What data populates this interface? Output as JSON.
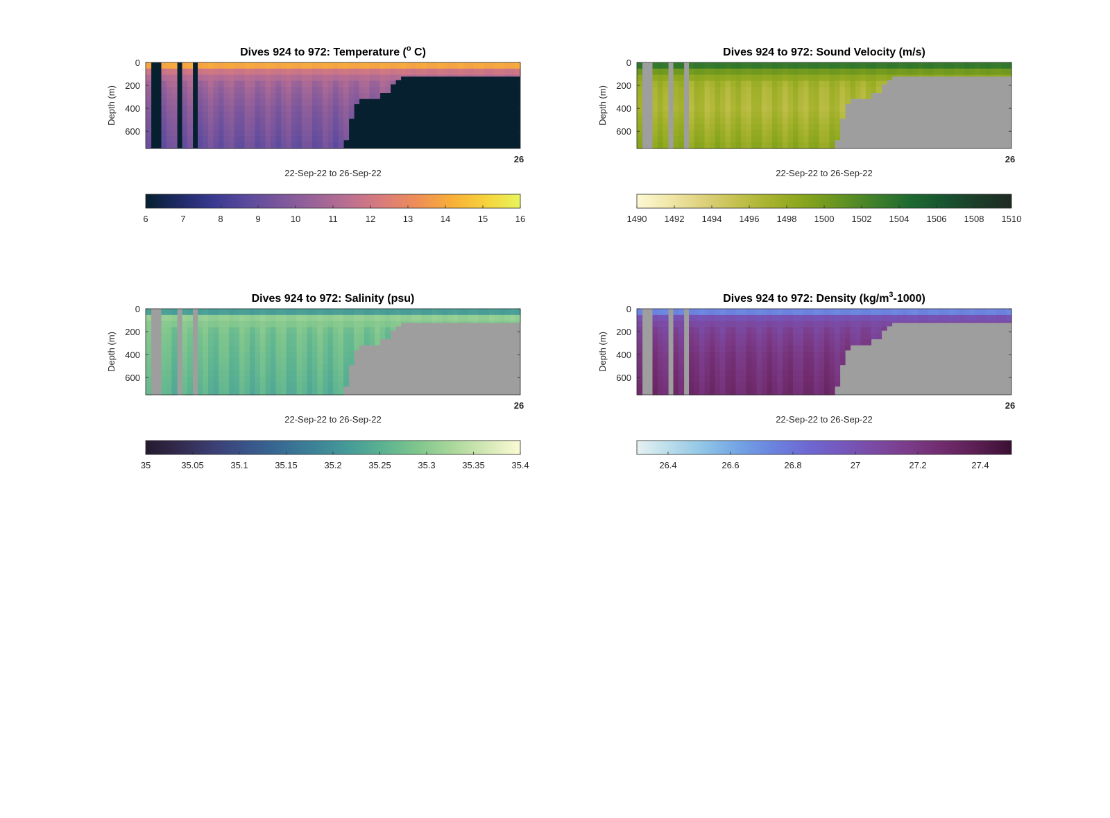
{
  "chart_data": [
    {
      "type": "heatmap",
      "variable": "temperature",
      "title": "Dives 924 to 972: Temperature (",
      "title_sup": "o",
      "title_end": " C)",
      "ylabel": "Depth (m)",
      "xlabel": "22-Sep-22 to 26-Sep-22",
      "x_tick_label": "26",
      "ylim": [
        0,
        750
      ],
      "yticks": [
        0,
        200,
        400,
        600
      ],
      "colorbar": {
        "min": 6,
        "max": 16,
        "ticks": [
          "6",
          "7",
          "8",
          "9",
          "10",
          "11",
          "12",
          "13",
          "14",
          "15",
          "16"
        ]
      },
      "fill_color": "#06202f",
      "colormap": [
        "#06202f",
        "#1f2a66",
        "#3a3a91",
        "#5c4a9d",
        "#7d579c",
        "#9c6498",
        "#bd7091",
        "#db7c7a",
        "#ef8f56",
        "#f8af38",
        "#f6d33c",
        "#e8f55d"
      ],
      "profile": {
        "depths": [
          0,
          15,
          40,
          70,
          110,
          200,
          400,
          750
        ],
        "values": [
          15.2,
          14.6,
          13.2,
          12.1,
          11.4,
          10.6,
          9.9,
          9.1
        ]
      }
    },
    {
      "type": "heatmap",
      "variable": "sound_velocity",
      "title": "Dives 924 to 972: Sound Velocity (m/s)",
      "ylabel": "Depth (m)",
      "xlabel": "22-Sep-22 to 26-Sep-22",
      "x_tick_label": "26",
      "ylim": [
        0,
        750
      ],
      "yticks": [
        0,
        200,
        400,
        600
      ],
      "colorbar": {
        "min": 1490,
        "max": 1510,
        "ticks": [
          "1490",
          "1492",
          "1494",
          "1496",
          "1498",
          "1500",
          "1502",
          "1504",
          "1506",
          "1508",
          "1510"
        ]
      },
      "fill_color": "#9e9e9e",
      "colormap": [
        "#fdf8d4",
        "#f0e6a6",
        "#dccf7a",
        "#c2c04c",
        "#a3b12b",
        "#85a31c",
        "#649322",
        "#3f7f2a",
        "#1e6a30",
        "#175430",
        "#1c3d28",
        "#1e2a22"
      ],
      "profile": {
        "depths": [
          0,
          15,
          40,
          70,
          110,
          200,
          400,
          750
        ],
        "values": [
          1505.5,
          1504.0,
          1502.5,
          1500.5,
          1499.0,
          1497.0,
          1496.5,
          1498.5
        ]
      }
    },
    {
      "type": "heatmap",
      "variable": "salinity",
      "title": "Dives 924 to 972: Salinity (psu)",
      "ylabel": "Depth (m)",
      "xlabel": "22-Sep-22 to 26-Sep-22",
      "x_tick_label": "26",
      "ylim": [
        0,
        750
      ],
      "yticks": [
        0,
        200,
        400,
        600
      ],
      "colorbar": {
        "min": 35,
        "max": 35.4,
        "ticks": [
          "35",
          "35.05",
          "35.1",
          "35.15",
          "35.2",
          "35.25",
          "35.3",
          "35.35",
          "35.4"
        ]
      },
      "fill_color": "#9e9e9e",
      "colormap": [
        "#241a2e",
        "#332b4f",
        "#3b3f74",
        "#39558a",
        "#386c93",
        "#3c8497",
        "#479c98",
        "#5cb391",
        "#80c68d",
        "#aad79b",
        "#d4e8b5",
        "#fcfbd4"
      ],
      "profile": {
        "depths": [
          0,
          15,
          40,
          70,
          110,
          200,
          400,
          750
        ],
        "values": [
          35.12,
          35.18,
          35.27,
          35.31,
          35.3,
          35.28,
          35.27,
          35.25
        ]
      }
    },
    {
      "type": "heatmap",
      "variable": "density",
      "title": "Dives 924 to 972: Density (kg/m",
      "title_sup": "3",
      "title_end": "-1000)",
      "ylabel": "Depth (m)",
      "xlabel": "22-Sep-22 to 26-Sep-22",
      "x_tick_label": "26",
      "ylim": [
        0,
        750
      ],
      "yticks": [
        0,
        200,
        400,
        600
      ],
      "colorbar": {
        "min": 26.3,
        "max": 27.5,
        "ticks": [
          "26.4",
          "26.6",
          "26.8",
          "27",
          "27.2",
          "27.4"
        ],
        "tick_values": [
          26.4,
          26.6,
          26.8,
          27.0,
          27.2,
          27.4
        ]
      },
      "fill_color": "#9e9e9e",
      "colormap": [
        "#e6f1f1",
        "#b8dcea",
        "#8ec3e6",
        "#73a3e4",
        "#6b83df",
        "#6e68d3",
        "#7458bd",
        "#7b4aa3",
        "#7b3b88",
        "#702b6d",
        "#5a1e51",
        "#3b0f33"
      ],
      "profile": {
        "depths": [
          0,
          15,
          40,
          70,
          110,
          200,
          400,
          750
        ],
        "values": [
          26.4,
          26.62,
          26.85,
          26.98,
          27.05,
          27.12,
          27.2,
          27.28
        ]
      }
    }
  ]
}
